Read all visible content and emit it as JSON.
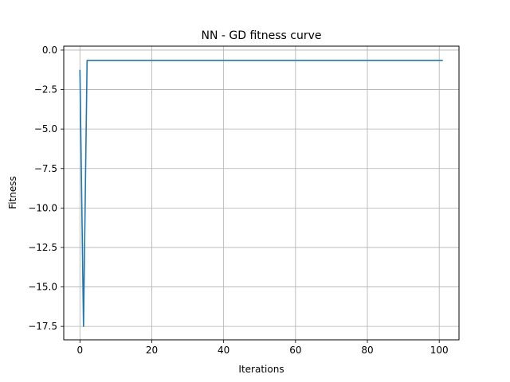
{
  "chart_data": {
    "type": "line",
    "title": "NN - GD fitness curve",
    "xlabel": "Iterations",
    "ylabel": "Fitness",
    "xlim": [
      -4.5,
      105.5
    ],
    "ylim": [
      -18.35,
      0.25
    ],
    "xticks": [
      0,
      20,
      40,
      60,
      80,
      100
    ],
    "xtick_labels": [
      "0",
      "20",
      "40",
      "60",
      "80",
      "100"
    ],
    "yticks": [
      0.0,
      -2.5,
      -5.0,
      -7.5,
      -10.0,
      -12.5,
      -15.0,
      -17.5
    ],
    "ytick_labels": [
      "0.0",
      "−2.5",
      "−5.0",
      "−7.5",
      "−10.0",
      "−12.5",
      "−15.0",
      "−17.5"
    ],
    "grid": true,
    "line_color": "#1f77b4",
    "series": [
      {
        "x": [
          0,
          1,
          2,
          101
        ],
        "y": [
          -1.25,
          -17.5,
          -0.65,
          -0.65
        ]
      }
    ]
  }
}
